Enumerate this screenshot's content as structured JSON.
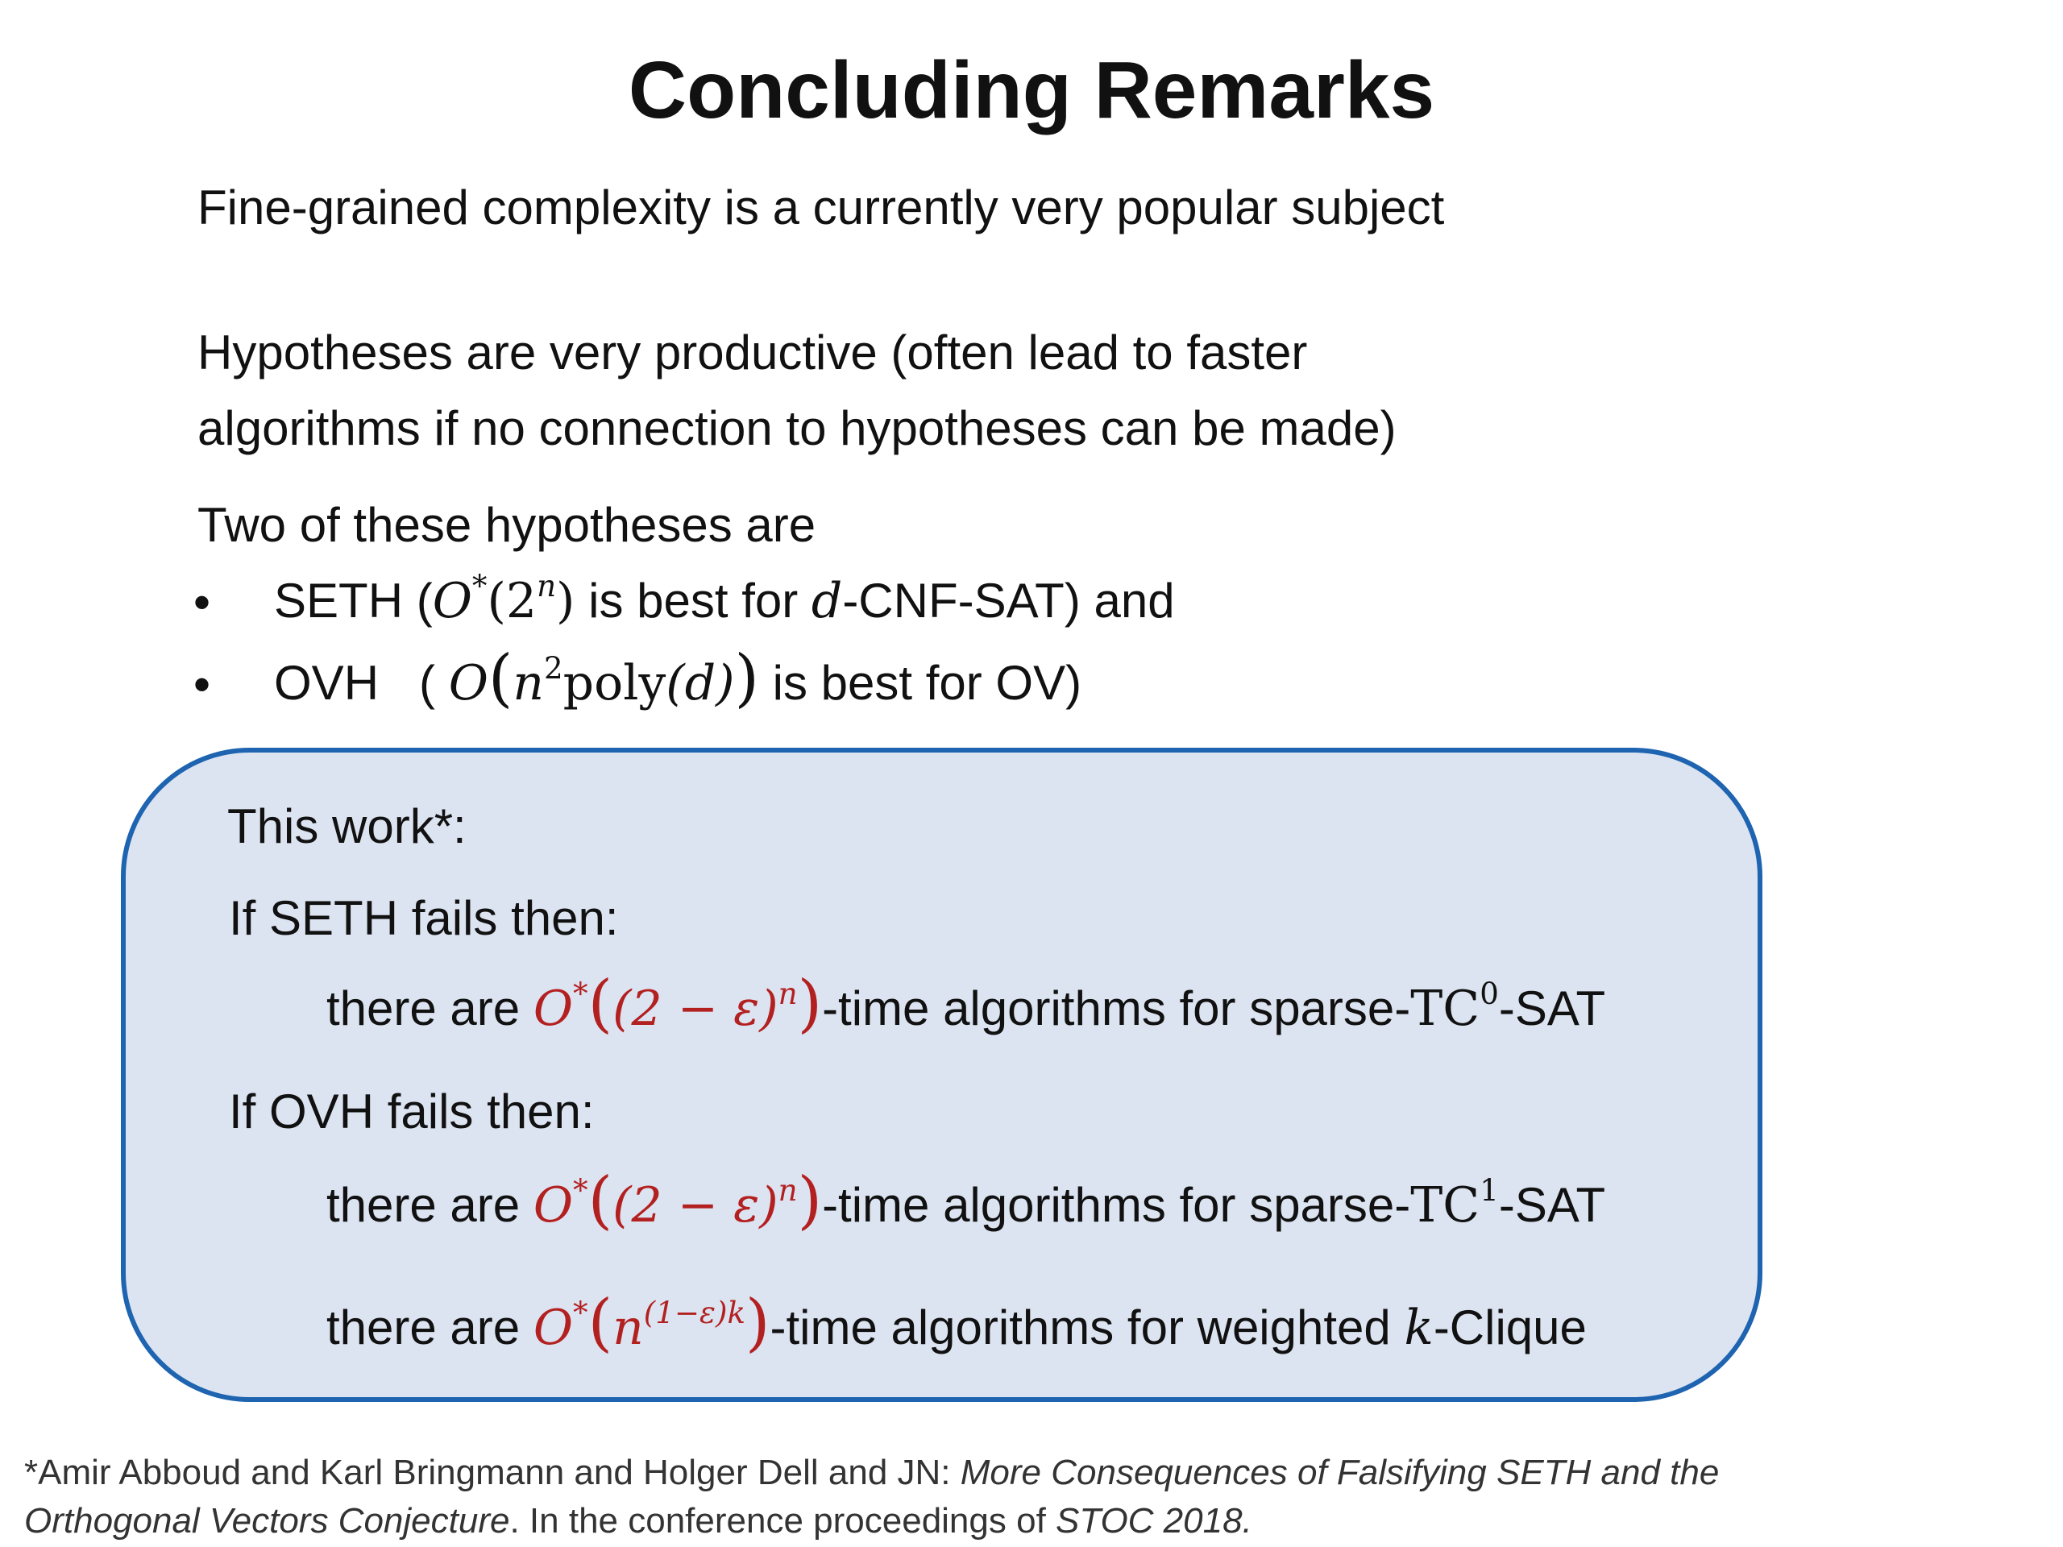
{
  "slide": {
    "title": "Concluding Remarks",
    "line1": "Fine-grained complexity is a currently very popular subject",
    "hyp_line1": "Hypotheses are very productive (often lead to faster",
    "hyp_line2": "algorithms if no connection to hypotheses can be made)",
    "two_intro": "Two of these hypotheses are",
    "bullet_symbol": "•",
    "bullets": [
      {
        "name": "SETH",
        "open": " (",
        "math_O": "O",
        "math_star": "*",
        "math_paren_open": "(2",
        "math_sup": "n",
        "math_paren_close": ")",
        "text_mid": " is best for ",
        "math_var": "d",
        "text_end": "-CNF-SAT) and"
      },
      {
        "name": "OVH",
        "open": "   ( ",
        "math_O": "O",
        "math_lparen": "(",
        "math_n": "n",
        "math_sup": "2",
        "math_poly": "poly",
        "math_poly_arg": "(d)",
        "math_rparen": ")",
        "text_end": " is best for OV)"
      }
    ]
  },
  "box": {
    "heading": "This work*:",
    "seth_fails": "If SETH fails then:",
    "ovh_fails": "If OVH fails then:",
    "results": [
      {
        "prefix": "there are ",
        "math_O": "O",
        "math_star": "*",
        "math_open": "(",
        "math_inner": "(2 − ε)",
        "math_sup": "n",
        "math_close": ")",
        "suffix_text": "-time algorithms for sparse-",
        "class_name": "TC",
        "class_sup": "0",
        "tail": "-SAT"
      },
      {
        "prefix": "there are ",
        "math_O": "O",
        "math_star": "*",
        "math_open": "(",
        "math_inner": "(2 − ε)",
        "math_sup": "n",
        "math_close": ")",
        "suffix_text": "-time algorithms for sparse-",
        "class_name": "TC",
        "class_sup": "1",
        "tail": "-SAT"
      },
      {
        "prefix": "there are ",
        "math_O": "O",
        "math_star": "*",
        "math_open": "(",
        "math_inner": "n",
        "math_sup": "(1−ε)k",
        "math_close": ")",
        "suffix_text": "-time algorithms for weighted ",
        "math_var": "k",
        "tail": "-Clique"
      }
    ]
  },
  "footnote": {
    "line1_authors": "*Amir Abboud and Karl Bringmann and Holger Dell and JN:  ",
    "line1_title": "More Consequences of Falsifying SETH and the",
    "line2_title": "Orthogonal Vectors Conjecture",
    "line2_mid": ". In the conference proceedings of ",
    "line2_venue": "STOC 2018."
  }
}
